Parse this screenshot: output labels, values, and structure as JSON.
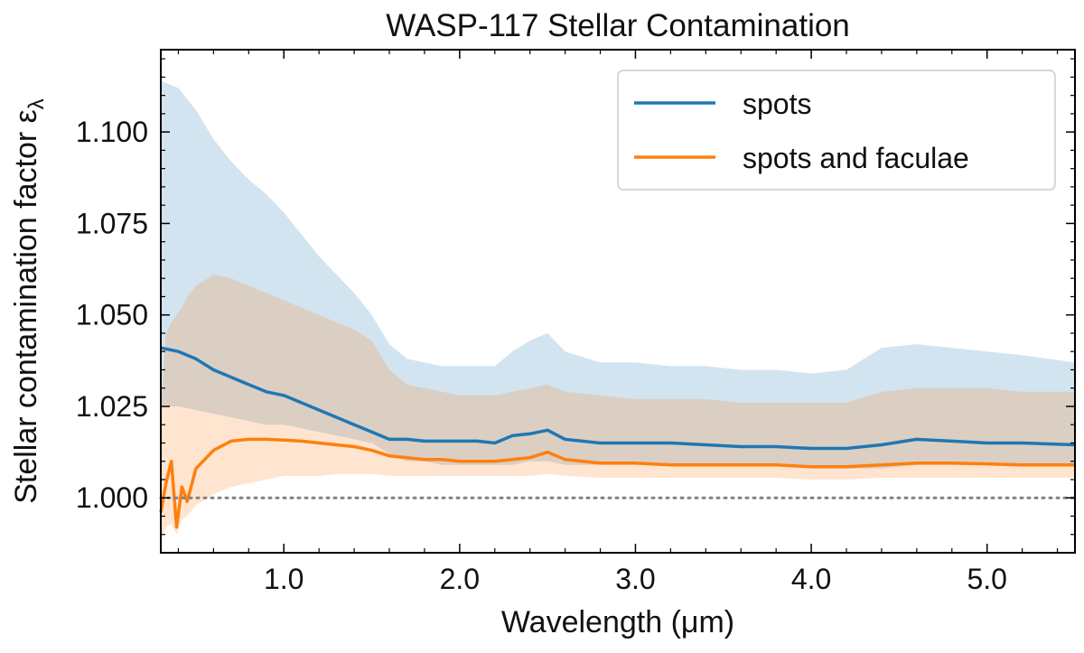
{
  "chart_data": {
    "type": "line",
    "title": "WASP-117 Stellar Contamination",
    "xlabel": "Wavelength (μm)",
    "ylabel": "Stellar contamination factor ε",
    "ylabel_subscript": "λ",
    "xlim": [
      0.3,
      5.5
    ],
    "ylim": [
      0.985,
      1.1225
    ],
    "xticks": [
      1.0,
      2.0,
      3.0,
      4.0,
      5.0
    ],
    "xtick_labels": [
      "1.0",
      "2.0",
      "3.0",
      "4.0",
      "5.0"
    ],
    "yticks": [
      1.0,
      1.025,
      1.05,
      1.075,
      1.1
    ],
    "ytick_labels": [
      "1.000",
      "1.025",
      "1.050",
      "1.075",
      "1.100"
    ],
    "reference_line": 1.0,
    "legend_position": "top-right",
    "series": [
      {
        "name": "spots",
        "color": "#1f77b4",
        "band_color": "#1f77b4",
        "x": [
          0.3,
          0.4,
          0.5,
          0.6,
          0.7,
          0.8,
          0.9,
          1.0,
          1.1,
          1.2,
          1.3,
          1.4,
          1.5,
          1.6,
          1.7,
          1.8,
          1.9,
          2.0,
          2.1,
          2.2,
          2.3,
          2.4,
          2.5,
          2.6,
          2.8,
          3.0,
          3.2,
          3.4,
          3.6,
          3.8,
          4.0,
          4.2,
          4.4,
          4.6,
          4.8,
          5.0,
          5.2,
          5.5
        ],
        "values": [
          1.041,
          1.04,
          1.038,
          1.035,
          1.033,
          1.031,
          1.029,
          1.028,
          1.026,
          1.024,
          1.022,
          1.02,
          1.018,
          1.016,
          1.016,
          1.0155,
          1.0155,
          1.0155,
          1.0155,
          1.015,
          1.017,
          1.0175,
          1.0185,
          1.016,
          1.015,
          1.015,
          1.015,
          1.0145,
          1.014,
          1.014,
          1.0135,
          1.0135,
          1.0145,
          1.016,
          1.0155,
          1.015,
          1.015,
          1.0145
        ],
        "lower": [
          1.025,
          1.025,
          1.024,
          1.023,
          1.022,
          1.021,
          1.02,
          1.02,
          1.019,
          1.018,
          1.017,
          1.016,
          1.015,
          1.012,
          1.01,
          1.01,
          1.009,
          1.009,
          1.009,
          1.009,
          1.009,
          1.01,
          1.01,
          1.009,
          1.009,
          1.009,
          1.009,
          1.009,
          1.009,
          1.009,
          1.008,
          1.008,
          1.008,
          1.009,
          1.009,
          1.009,
          1.009,
          1.009
        ],
        "upper": [
          1.114,
          1.112,
          1.106,
          1.098,
          1.092,
          1.087,
          1.083,
          1.078,
          1.072,
          1.066,
          1.061,
          1.056,
          1.05,
          1.042,
          1.038,
          1.037,
          1.036,
          1.036,
          1.036,
          1.036,
          1.04,
          1.043,
          1.045,
          1.04,
          1.037,
          1.037,
          1.036,
          1.036,
          1.035,
          1.035,
          1.034,
          1.035,
          1.041,
          1.042,
          1.041,
          1.04,
          1.039,
          1.037
        ]
      },
      {
        "name": "spots and faculae",
        "color": "#ff7f0e",
        "band_color": "#ff7f0e",
        "x": [
          0.3,
          0.33,
          0.36,
          0.39,
          0.42,
          0.45,
          0.5,
          0.6,
          0.7,
          0.8,
          0.9,
          1.0,
          1.1,
          1.2,
          1.3,
          1.4,
          1.5,
          1.6,
          1.7,
          1.8,
          1.9,
          2.0,
          2.1,
          2.2,
          2.3,
          2.4,
          2.5,
          2.6,
          2.8,
          3.0,
          3.2,
          3.4,
          3.6,
          3.8,
          4.0,
          4.2,
          4.4,
          4.6,
          4.8,
          5.0,
          5.2,
          5.5
        ],
        "values": [
          0.996,
          1.004,
          1.01,
          0.992,
          1.003,
          0.999,
          1.008,
          1.013,
          1.0155,
          1.016,
          1.016,
          1.0158,
          1.0155,
          1.015,
          1.0145,
          1.014,
          1.013,
          1.0115,
          1.011,
          1.0105,
          1.0105,
          1.01,
          1.01,
          1.01,
          1.0105,
          1.011,
          1.0125,
          1.0105,
          1.0095,
          1.0095,
          1.009,
          1.009,
          1.009,
          1.009,
          1.0085,
          1.0085,
          1.009,
          1.0095,
          1.0095,
          1.0093,
          1.009,
          1.009
        ],
        "lower": [
          0.988,
          0.992,
          0.993,
          0.99,
          0.994,
          0.995,
          0.998,
          1.001,
          1.003,
          1.004,
          1.005,
          1.006,
          1.006,
          1.006,
          1.0065,
          1.0065,
          1.0065,
          1.006,
          1.006,
          1.006,
          1.006,
          1.006,
          1.006,
          1.006,
          1.006,
          1.006,
          1.0065,
          1.006,
          1.0055,
          1.0055,
          1.0055,
          1.0055,
          1.0055,
          1.0055,
          1.005,
          1.005,
          1.0055,
          1.0055,
          1.0055,
          1.0055,
          1.0055,
          1.0055
        ],
        "upper": [
          1.025,
          1.045,
          1.048,
          1.05,
          1.052,
          1.055,
          1.058,
          1.061,
          1.06,
          1.058,
          1.056,
          1.054,
          1.052,
          1.05,
          1.048,
          1.046,
          1.043,
          1.035,
          1.031,
          1.03,
          1.029,
          1.028,
          1.028,
          1.028,
          1.029,
          1.03,
          1.031,
          1.029,
          1.028,
          1.027,
          1.027,
          1.027,
          1.026,
          1.026,
          1.026,
          1.026,
          1.029,
          1.03,
          1.03,
          1.03,
          1.029,
          1.029
        ]
      }
    ]
  }
}
